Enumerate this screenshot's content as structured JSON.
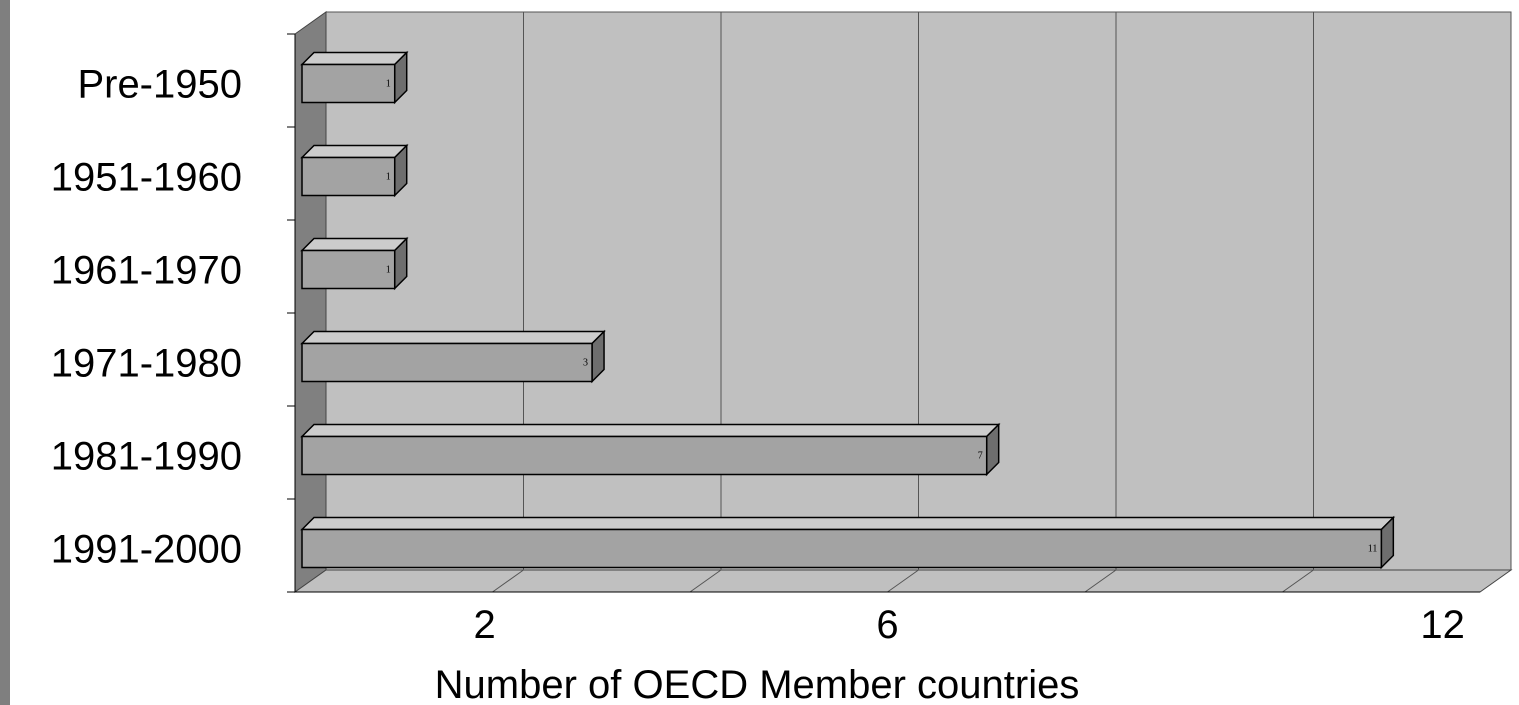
{
  "chart_data": {
    "type": "bar",
    "orientation": "horizontal",
    "style": "3d",
    "categories": [
      "Pre-1950",
      "1951-1960",
      "1961-1970",
      "1971-1980",
      "1981-1990",
      "1991-2000"
    ],
    "values": [
      1,
      1,
      1,
      3,
      7,
      11
    ],
    "data_labels": [
      "1",
      "1",
      "1",
      "3",
      "7",
      "11"
    ],
    "x_ticks": [
      {
        "value": 2,
        "label": "2"
      },
      {
        "value": 6,
        "label": "6"
      },
      {
        "value": 12,
        "label": "12"
      }
    ],
    "xlabel": "Number of OECD Member countries",
    "ylabel": "",
    "title": "",
    "xlim": [
      0,
      12
    ],
    "grid": true,
    "legend": false,
    "colors": {
      "plot_wall": "#c0c0c0",
      "side_wall": "#808080",
      "floor": "#c0c0c0",
      "bar_front": "#a3a3a3",
      "bar_top": "#cccccc",
      "bar_side": "#6e6e6e",
      "gridline": "#555555",
      "left_strip": "#7f7f7f"
    }
  }
}
